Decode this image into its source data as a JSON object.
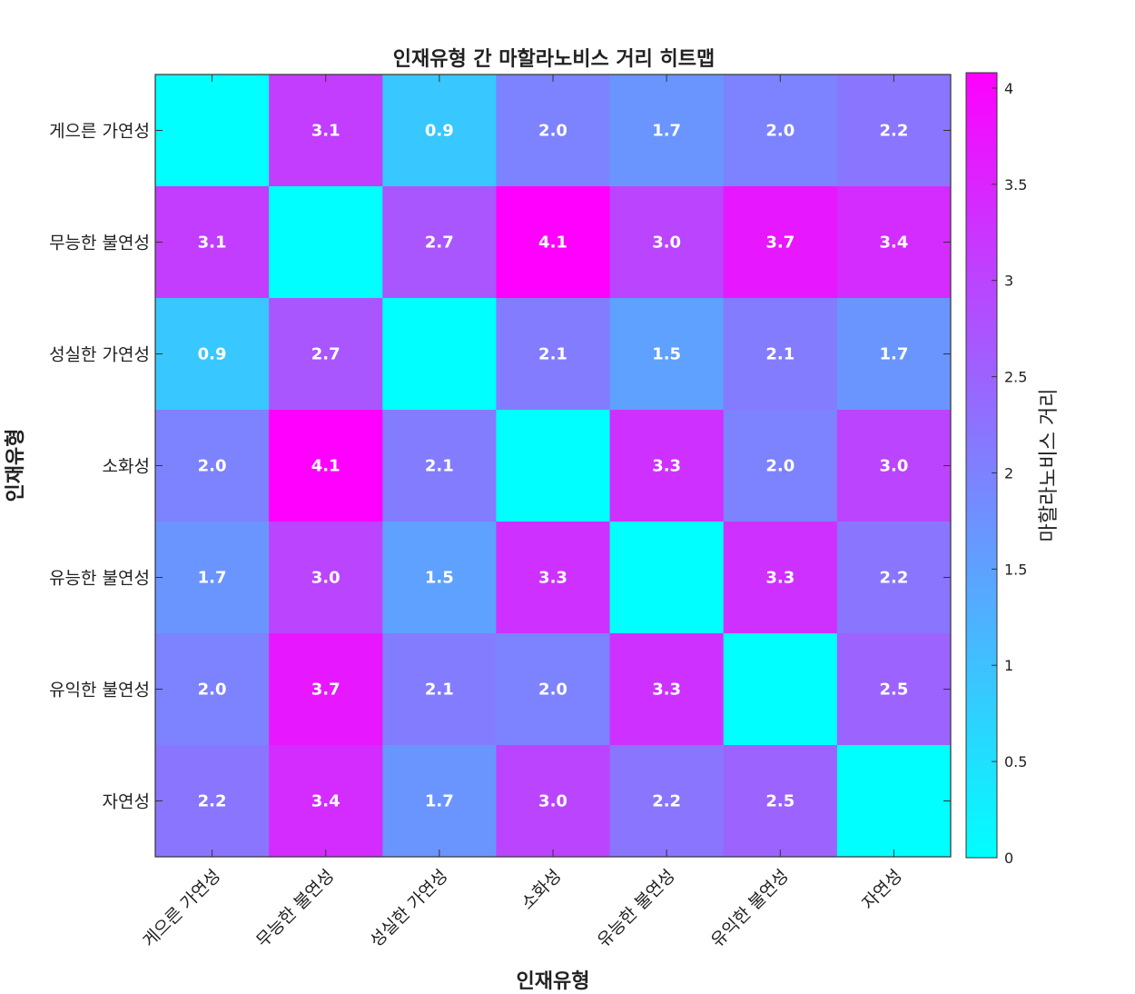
{
  "chart_data": {
    "type": "heatmap",
    "title": "인재유형 간 마할라노비스 거리 히트맵",
    "xlabel": "인재유형",
    "ylabel": "인재유형",
    "categories": [
      "게으른 가연성",
      "무능한 불연성",
      "성실한 가연성",
      "소화성",
      "유능한 불연성",
      "유익한 불연성",
      "자연성"
    ],
    "matrix": [
      [
        0.0,
        3.1,
        0.9,
        2.0,
        1.7,
        2.0,
        2.2
      ],
      [
        3.1,
        0.0,
        2.7,
        4.1,
        3.0,
        3.7,
        3.4
      ],
      [
        0.9,
        2.7,
        0.0,
        2.1,
        1.5,
        2.1,
        1.7
      ],
      [
        2.0,
        4.1,
        2.1,
        0.0,
        3.3,
        2.0,
        3.0
      ],
      [
        1.7,
        3.0,
        1.5,
        3.3,
        0.0,
        3.3,
        2.2
      ],
      [
        2.0,
        3.7,
        2.1,
        2.0,
        3.3,
        0.0,
        2.5
      ],
      [
        2.2,
        3.4,
        1.7,
        3.0,
        2.2,
        2.5,
        0.0
      ]
    ],
    "cell_labels": [
      [
        "",
        "3.1",
        "0.9",
        "2.0",
        "1.7",
        "2.0",
        "2.2"
      ],
      [
        "3.1",
        "",
        "2.7",
        "4.1",
        "3.0",
        "3.7",
        "3.4"
      ],
      [
        "0.9",
        "2.7",
        "",
        "2.1",
        "1.5",
        "2.1",
        "1.7"
      ],
      [
        "2.0",
        "4.1",
        "2.1",
        "",
        "3.3",
        "2.0",
        "3.0"
      ],
      [
        "1.7",
        "3.0",
        "1.5",
        "3.3",
        "",
        "3.3",
        "2.2"
      ],
      [
        "2.0",
        "3.7",
        "2.1",
        "2.0",
        "3.3",
        "",
        "2.5"
      ],
      [
        "2.2",
        "3.4",
        "1.7",
        "3.0",
        "2.2",
        "2.5",
        ""
      ]
    ],
    "colormap": {
      "name": "cool",
      "low": "#00ffff",
      "high": "#ff00ff"
    },
    "colorbar": {
      "label": "마할라노비스 거리",
      "range": [
        0,
        4.08
      ],
      "ticks": [
        "0",
        "0.5",
        "1",
        "1.5",
        "2",
        "2.5",
        "3",
        "3.5",
        "4"
      ]
    }
  }
}
